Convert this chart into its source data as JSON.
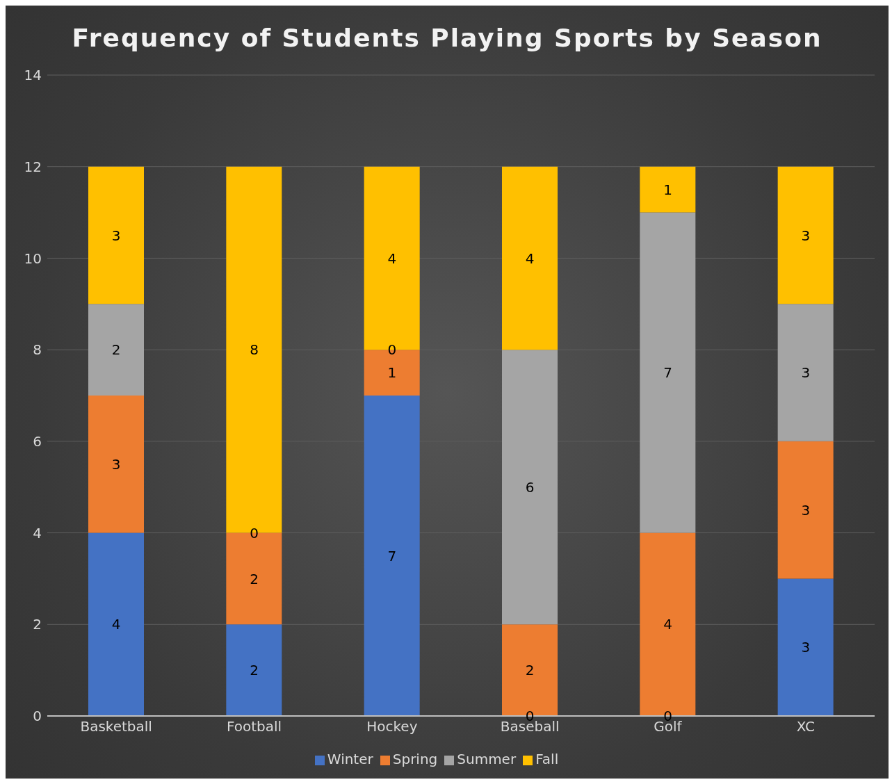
{
  "chart_data": {
    "type": "bar",
    "title": "Frequency of Students Playing Sports by Season",
    "categories": [
      "Basketball",
      "Football",
      "Hockey",
      "Baseball",
      "Golf",
      "XC"
    ],
    "stacked": true,
    "series": [
      {
        "name": "Winter",
        "color": "#4472c4",
        "values": [
          4,
          2,
          7,
          0,
          0,
          3
        ],
        "value_labels": [
          "4",
          "2",
          "7",
          null,
          null,
          "3"
        ]
      },
      {
        "name": "Spring",
        "color": "#ed7d31",
        "values": [
          3,
          2,
          1,
          2,
          4,
          3
        ],
        "value_labels": [
          "3",
          "2",
          "1",
          "2",
          "4",
          "3"
        ]
      },
      {
        "name": "Summer",
        "color": "#a5a5a5",
        "values": [
          2,
          0,
          0,
          6,
          7,
          3
        ],
        "value_labels": [
          "2",
          null,
          null,
          "6",
          "7",
          "3"
        ]
      },
      {
        "name": "Fall",
        "color": "#ffc000",
        "values": [
          3,
          8,
          4,
          4,
          1,
          3
        ],
        "value_labels": [
          "3",
          "8",
          "4",
          "4",
          "1",
          "3"
        ]
      }
    ],
    "annotations": [
      {
        "text": "0",
        "x": "Football",
        "y": 4
      },
      {
        "text": "0",
        "x": "Hockey",
        "y": 8
      },
      {
        "text": "0",
        "x": "Baseball",
        "y": 0
      },
      {
        "text": "0",
        "x": "Golf",
        "y": 0
      }
    ],
    "ylim": [
      0,
      14
    ],
    "yticks": [
      0,
      2,
      4,
      6,
      8,
      10,
      12,
      14
    ],
    "grid": "y",
    "legend": "bottom"
  }
}
